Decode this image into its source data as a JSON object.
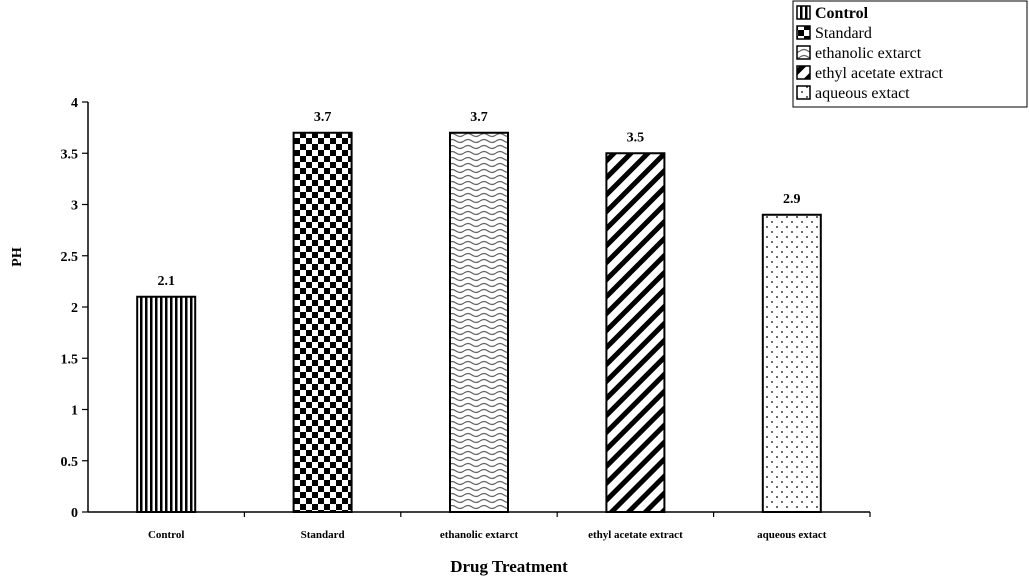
{
  "chart_data": {
    "type": "bar",
    "categories": [
      "Control",
      "Standard",
      "ethanolic extarct",
      "ethyl acetate extract",
      "aqueous extact"
    ],
    "values": [
      2.1,
      3.7,
      3.7,
      3.5,
      2.9
    ],
    "data_labels": [
      "2.1",
      "3.7",
      "3.7",
      "3.5",
      "2.9"
    ],
    "patterns": [
      "vertical-stripes",
      "checkerboard",
      "waves",
      "diagonal-stripes",
      "dots"
    ],
    "xlabel": "Drug Treatment",
    "ylabel": "PH",
    "ylim": [
      0,
      4
    ],
    "yticks": [
      0,
      0.5,
      1,
      1.5,
      2,
      2.5,
      3,
      3.5,
      4
    ],
    "ytick_labels": [
      "0",
      "0.5",
      "1",
      "1.5",
      "2",
      "2.5",
      "3",
      "3.5",
      "4"
    ],
    "grid": false,
    "legend": {
      "placement": "top-right",
      "entries": [
        "Control",
        "Standard",
        "ethanolic extarct",
        "ethyl acetate extract",
        "aqueous extact"
      ],
      "bold_first": true
    }
  }
}
